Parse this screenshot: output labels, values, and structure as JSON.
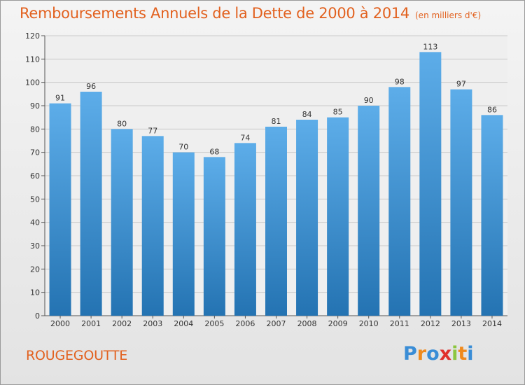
{
  "header": {
    "title": "Remboursements Annuels de la Dette de 2000 à 2014",
    "unit": "(en milliers d'€)"
  },
  "footer": {
    "commune": "ROUGEGOUTTE",
    "logo_text": "Proxiti",
    "logo_letters": [
      {
        "char": "P",
        "color": "#3a8dd6"
      },
      {
        "char": "r",
        "color": "#f08a1c"
      },
      {
        "char": "o",
        "color": "#3a8dd6"
      },
      {
        "char": "x",
        "color": "#e0302a"
      },
      {
        "char": "i",
        "color": "#8cc63f"
      },
      {
        "char": "t",
        "color": "#f08a1c"
      },
      {
        "char": "i",
        "color": "#3a8dd6"
      }
    ]
  },
  "chart_data": {
    "type": "bar",
    "categories": [
      "2000",
      "2001",
      "2002",
      "2003",
      "2004",
      "2005",
      "2006",
      "2007",
      "2008",
      "2009",
      "2010",
      "2011",
      "2012",
      "2013",
      "2014"
    ],
    "values": [
      91,
      96,
      80,
      77,
      70,
      68,
      74,
      81,
      84,
      85,
      90,
      98,
      113,
      97,
      86
    ],
    "ylim": [
      0,
      120
    ],
    "yticks": [
      0,
      10,
      20,
      30,
      40,
      50,
      60,
      70,
      80,
      90,
      100,
      110,
      120
    ],
    "grid": true,
    "bar_color_top": "#5dade9",
    "bar_color_bottom": "#2473b2",
    "title_color": "#e2611f"
  }
}
